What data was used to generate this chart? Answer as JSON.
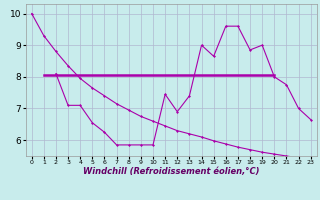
{
  "title": "",
  "xlabel": "Windchill (Refroidissement éolien,°C)",
  "ylabel": "",
  "background_color": "#c8ecec",
  "grid_color": "#b0b8d0",
  "line_color": "#aa00aa",
  "xlim": [
    -0.5,
    23.5
  ],
  "ylim": [
    5.5,
    10.3
  ],
  "yticks": [
    6,
    7,
    8,
    9,
    10
  ],
  "xticks": [
    0,
    1,
    2,
    3,
    4,
    5,
    6,
    7,
    8,
    9,
    10,
    11,
    12,
    13,
    14,
    15,
    16,
    17,
    18,
    19,
    20,
    21,
    22,
    23
  ],
  "line1_x": [
    0,
    1,
    2,
    3,
    4,
    5,
    6,
    7,
    8,
    9,
    10,
    11,
    12,
    13,
    14,
    15,
    16,
    17,
    18,
    19,
    20,
    21,
    22,
    23
  ],
  "line1_y": [
    10.0,
    9.3,
    8.8,
    8.35,
    7.95,
    7.65,
    7.4,
    7.15,
    6.95,
    6.75,
    6.6,
    6.45,
    6.3,
    6.2,
    6.1,
    5.98,
    5.88,
    5.78,
    5.7,
    5.62,
    5.56,
    5.5,
    5.44,
    5.38
  ],
  "line2_x": [
    1,
    20
  ],
  "line2_y": [
    8.05,
    8.05
  ],
  "line3_x": [
    2,
    3,
    4,
    5,
    6,
    7,
    8,
    9,
    10,
    11,
    12,
    13,
    14,
    15,
    16,
    17,
    18,
    19,
    20,
    21,
    22,
    23
  ],
  "line3_y": [
    8.1,
    7.1,
    7.1,
    6.55,
    6.25,
    5.85,
    5.85,
    5.85,
    5.85,
    7.45,
    6.9,
    7.4,
    9.0,
    8.65,
    9.6,
    9.6,
    8.85,
    9.0,
    8.0,
    7.75,
    7.0,
    6.65
  ]
}
